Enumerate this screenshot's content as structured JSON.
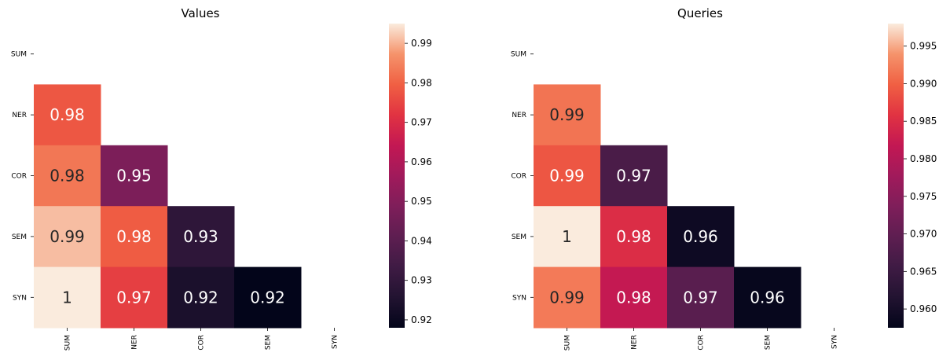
{
  "chart_data": [
    {
      "type": "heatmap",
      "title": "Values",
      "x_labels": [
        "SUM",
        "NER",
        "COR",
        "SEM",
        "SYN"
      ],
      "y_labels": [
        "SUM",
        "NER",
        "COR",
        "SEM",
        "SYN"
      ],
      "mask": "upper-triangle-including-diagonal",
      "cells": [
        {
          "row": "NER",
          "col": "SUM",
          "value": 0.978,
          "label": "0.98"
        },
        {
          "row": "COR",
          "col": "SUM",
          "value": 0.983,
          "label": "0.98"
        },
        {
          "row": "COR",
          "col": "NER",
          "value": 0.948,
          "label": "0.95"
        },
        {
          "row": "SEM",
          "col": "SUM",
          "value": 0.991,
          "label": "0.99"
        },
        {
          "row": "SEM",
          "col": "NER",
          "value": 0.979,
          "label": "0.98"
        },
        {
          "row": "SEM",
          "col": "COR",
          "value": 0.929,
          "label": "0.93"
        },
        {
          "row": "SYN",
          "col": "SUM",
          "value": 0.995,
          "label": "1"
        },
        {
          "row": "SYN",
          "col": "NER",
          "value": 0.974,
          "label": "0.97"
        },
        {
          "row": "SYN",
          "col": "COR",
          "value": 0.924,
          "label": "0.92"
        },
        {
          "row": "SYN",
          "col": "SEM",
          "value": 0.918,
          "label": "0.92"
        }
      ],
      "colorbar": {
        "vmin": 0.918,
        "vmax": 0.995,
        "ticks": [
          0.92,
          0.93,
          0.94,
          0.95,
          0.96,
          0.97,
          0.98,
          0.99
        ],
        "tick_labels": [
          "0.92",
          "0.93",
          "0.94",
          "0.95",
          "0.96",
          "0.97",
          "0.98",
          "0.99"
        ]
      },
      "colormap": "rocket"
    },
    {
      "type": "heatmap",
      "title": "Queries",
      "x_labels": [
        "SUM",
        "NER",
        "COR",
        "SEM",
        "SYN"
      ],
      "y_labels": [
        "SUM",
        "NER",
        "COR",
        "SEM",
        "SYN"
      ],
      "mask": "upper-triangle-including-diagonal",
      "cells": [
        {
          "row": "NER",
          "col": "SUM",
          "value": 0.9915,
          "label": "0.99"
        },
        {
          "row": "COR",
          "col": "SUM",
          "value": 0.989,
          "label": "0.99"
        },
        {
          "row": "COR",
          "col": "NER",
          "value": 0.967,
          "label": "0.97"
        },
        {
          "row": "SEM",
          "col": "SUM",
          "value": 0.998,
          "label": "1"
        },
        {
          "row": "SEM",
          "col": "NER",
          "value": 0.985,
          "label": "0.98"
        },
        {
          "row": "SEM",
          "col": "COR",
          "value": 0.959,
          "label": "0.96"
        },
        {
          "row": "SYN",
          "col": "SUM",
          "value": 0.992,
          "label": "0.99"
        },
        {
          "row": "SYN",
          "col": "NER",
          "value": 0.982,
          "label": "0.98"
        },
        {
          "row": "SYN",
          "col": "COR",
          "value": 0.969,
          "label": "0.97"
        },
        {
          "row": "SYN",
          "col": "SEM",
          "value": 0.958,
          "label": "0.96"
        }
      ],
      "colorbar": {
        "vmin": 0.9575,
        "vmax": 0.998,
        "ticks": [
          0.96,
          0.965,
          0.97,
          0.975,
          0.98,
          0.985,
          0.99,
          0.995
        ],
        "tick_labels": [
          "0.960",
          "0.965",
          "0.970",
          "0.975",
          "0.980",
          "0.985",
          "0.990",
          "0.995"
        ]
      },
      "colormap": "rocket"
    }
  ]
}
